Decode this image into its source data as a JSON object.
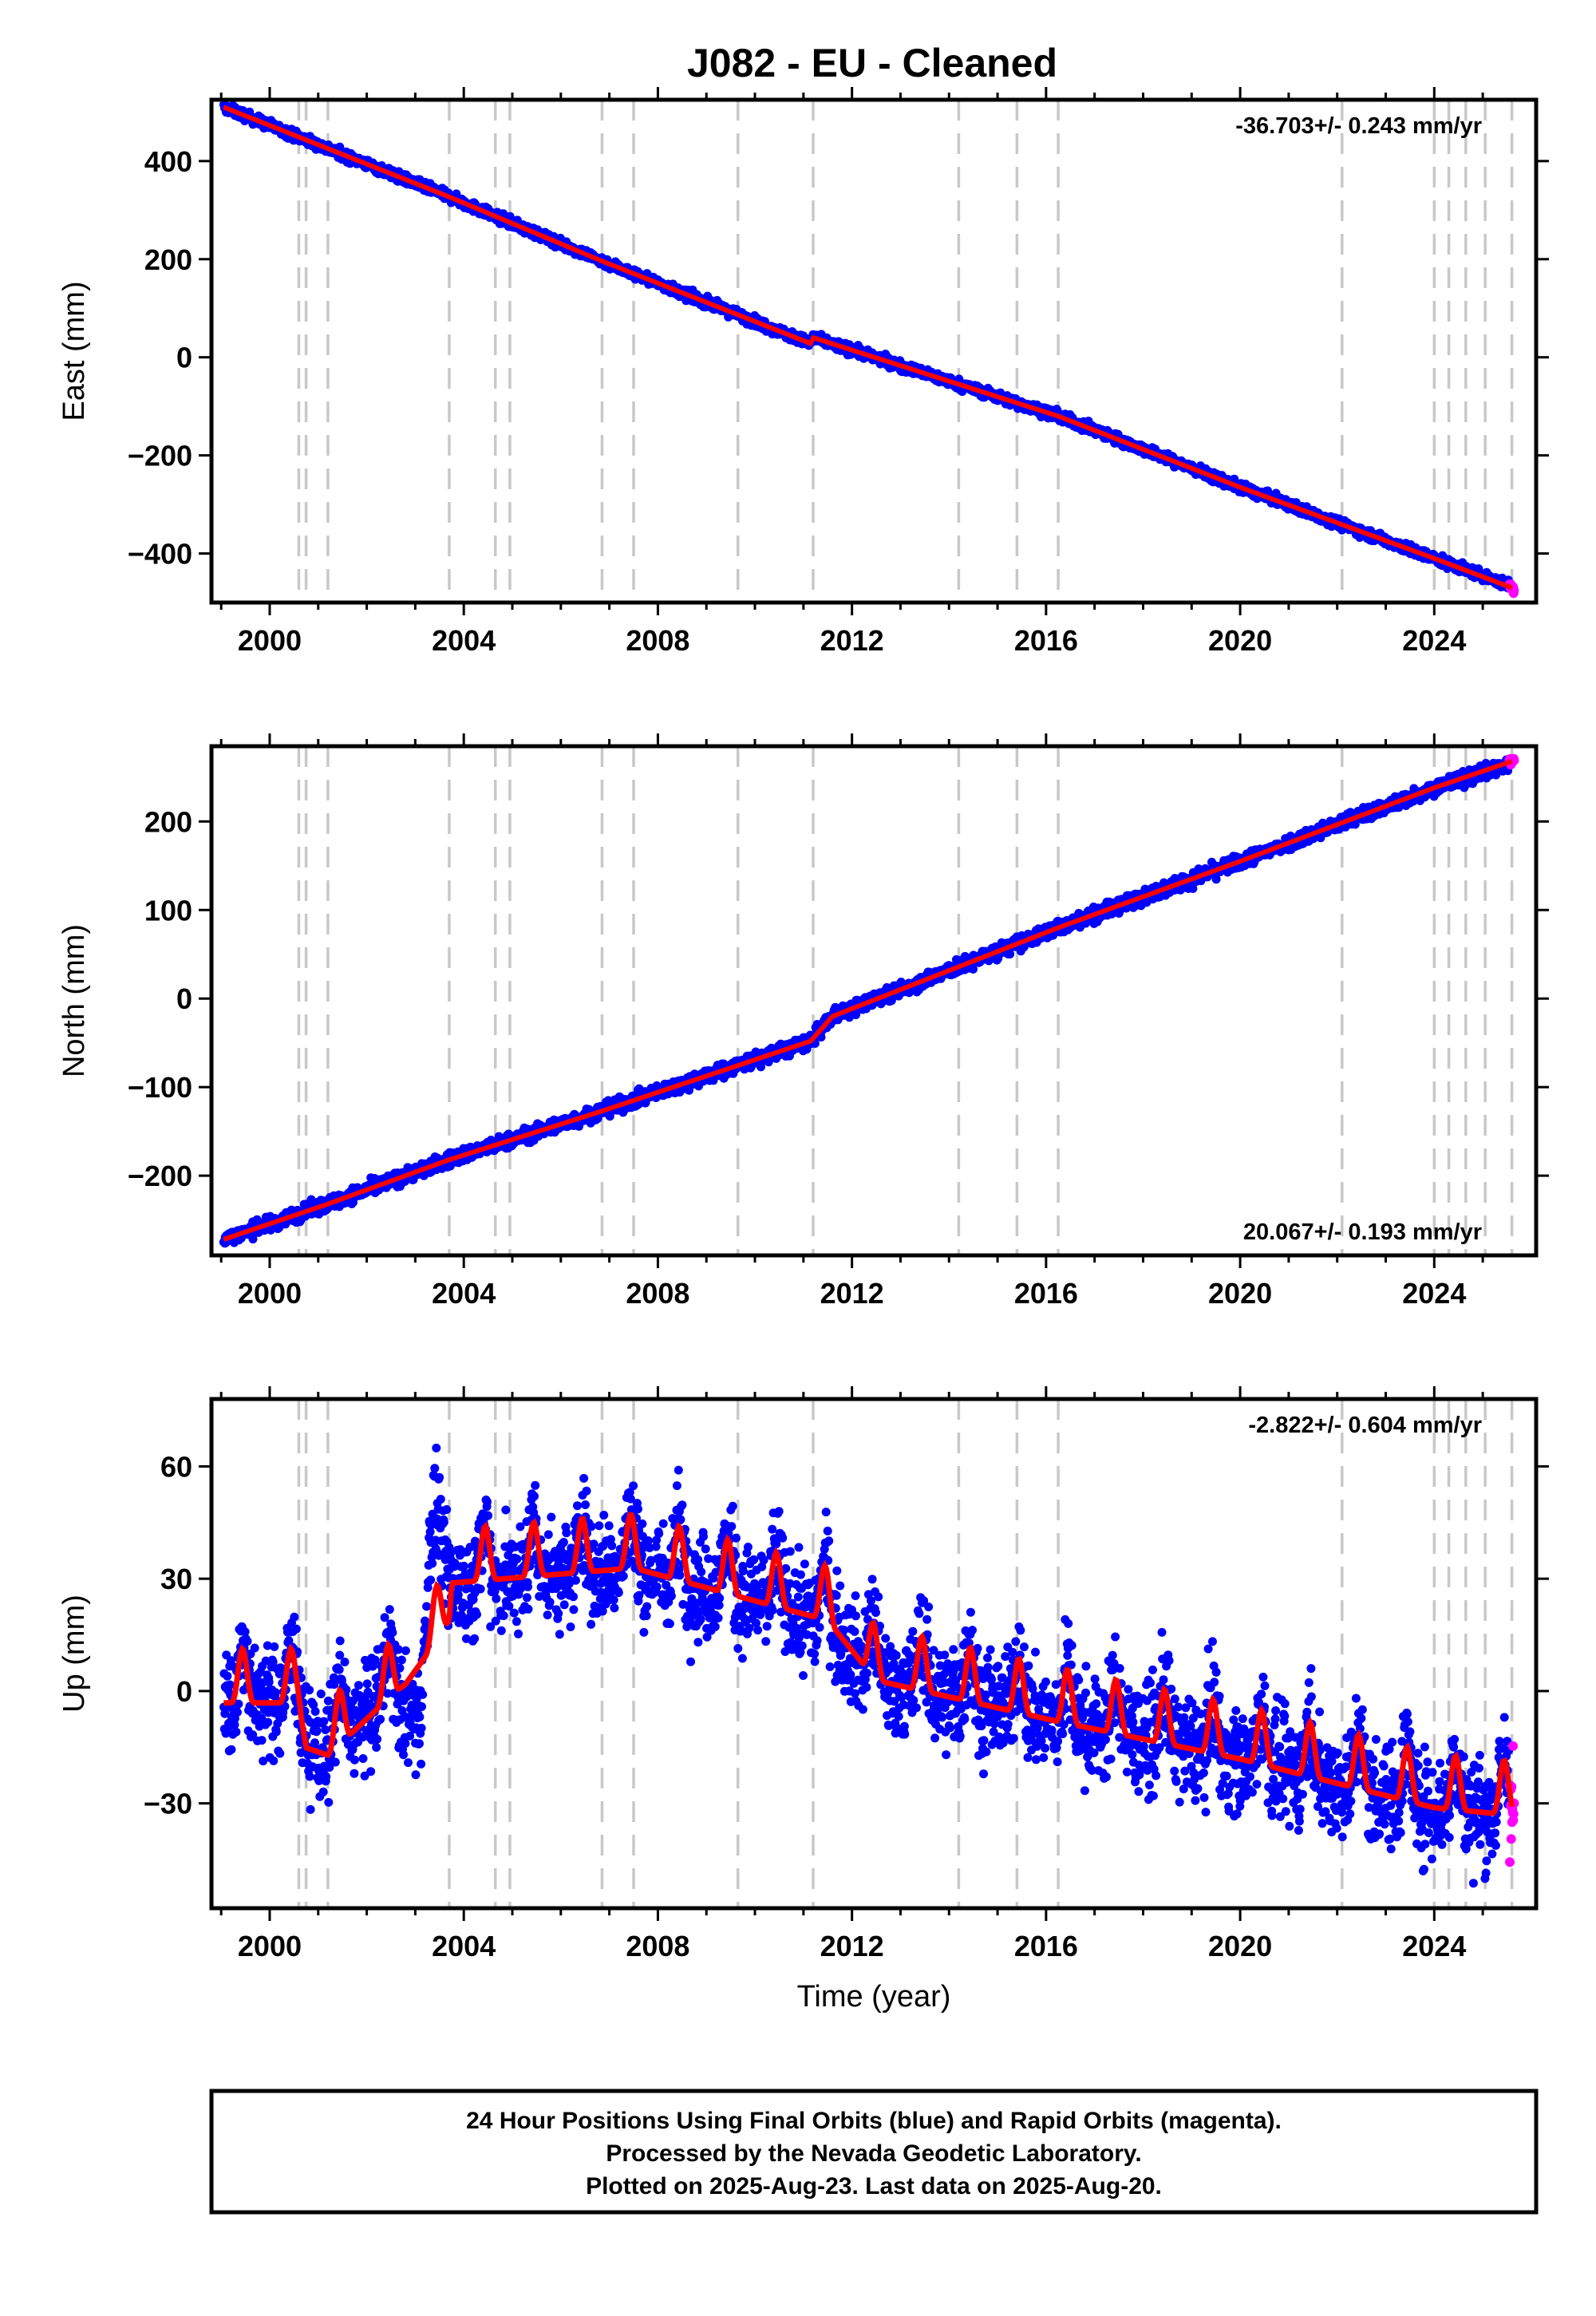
{
  "figure": {
    "title": "J082  - EU - Cleaned",
    "caption": [
      "24 Hour Positions Using Final Orbits (blue) and Rapid Orbits (magenta).",
      "Processed by the Nevada Geodetic Laboratory.",
      "Plotted on 2025-Aug-23. Last data on 2025-Aug-20."
    ],
    "colors": {
      "final_orbits": "#0000ff",
      "rapid_orbits": "#ff00ff",
      "model": "#ff0000",
      "event_lines": "#c8c8c8"
    }
  },
  "chart_data": [
    {
      "type": "scatter",
      "ylabel": "East (mm)",
      "xlabel": "",
      "rate_label": "-36.703+/- 0.243 mm/yr",
      "rate_placement": "top-right",
      "xlim": [
        1998.8,
        2026.1
      ],
      "ylim": [
        -500,
        525
      ],
      "xticks": [
        2000,
        2004,
        2008,
        2012,
        2016,
        2020,
        2024
      ],
      "yticks": [
        -400,
        -200,
        0,
        200,
        400
      ],
      "ytick_labels": [
        "−400",
        "−200",
        "0",
        "200",
        "400"
      ],
      "event_lines": [
        2000.6,
        2000.75,
        2001.2,
        2003.7,
        2004.65,
        2004.95,
        2006.85,
        2007.5,
        2009.65,
        2011.2,
        2014.2,
        2015.4,
        2016.25,
        2022.1,
        2024.0,
        2024.3,
        2024.65,
        2025.05,
        2025.6
      ],
      "series": [
        {
          "role": "final",
          "x_start": 1999.05,
          "x_end": 2025.55,
          "y": [
            [
              1999.05,
              510
            ],
            [
              2003.7,
              327
            ],
            [
              2006.85,
              196
            ],
            [
              2011.15,
              28
            ],
            [
              2011.2,
              40
            ],
            [
              2016.25,
              -120
            ],
            [
              2020.0,
              -265
            ],
            [
              2024.0,
              -410
            ],
            [
              2025.55,
              -465
            ]
          ],
          "scatter_mm": 5
        },
        {
          "role": "rapid",
          "x_start": 2025.55,
          "x_end": 2025.65,
          "y": [
            [
              2025.55,
              -465
            ],
            [
              2025.65,
              -474
            ]
          ],
          "scatter_mm": 4
        },
        {
          "role": "model",
          "y": [
            [
              1999.05,
              510
            ],
            [
              2003.7,
              327
            ],
            [
              2006.85,
              196
            ],
            [
              2011.15,
              28
            ],
            [
              2011.2,
              40
            ],
            [
              2016.25,
              -120
            ],
            [
              2020.0,
              -265
            ],
            [
              2024.0,
              -410
            ],
            [
              2025.6,
              -470
            ]
          ]
        }
      ]
    },
    {
      "type": "scatter",
      "ylabel": "North (mm)",
      "xlabel": "",
      "rate_label": "20.067+/- 0.193 mm/yr",
      "rate_placement": "bottom-right",
      "xlim": [
        1998.8,
        2026.1
      ],
      "ylim": [
        -290,
        285
      ],
      "xticks": [
        2000,
        2004,
        2008,
        2012,
        2016,
        2020,
        2024
      ],
      "yticks": [
        -200,
        -100,
        0,
        100,
        200
      ],
      "ytick_labels": [
        "−200",
        "−100",
        "0",
        "100",
        "200"
      ],
      "event_lines": [
        2000.6,
        2000.75,
        2001.2,
        2003.7,
        2004.65,
        2004.95,
        2006.85,
        2007.5,
        2009.65,
        2011.2,
        2014.2,
        2015.4,
        2016.25,
        2022.1,
        2024.0,
        2024.3,
        2024.65,
        2025.05,
        2025.6
      ],
      "series": [
        {
          "role": "final",
          "x_start": 1999.05,
          "x_end": 2025.55,
          "y": [
            [
              1999.05,
              -272
            ],
            [
              2001.2,
              -232
            ],
            [
              2003.7,
              -182
            ],
            [
              2006.85,
              -127
            ],
            [
              2011.15,
              -48
            ],
            [
              2011.6,
              -20
            ],
            [
              2016.25,
              80
            ],
            [
              2020.0,
              155
            ],
            [
              2024.0,
              238
            ],
            [
              2025.55,
              265
            ]
          ],
          "scatter_mm": 4
        },
        {
          "role": "rapid",
          "x_start": 2025.55,
          "x_end": 2025.65,
          "y": [
            [
              2025.55,
              265
            ],
            [
              2025.65,
              272
            ]
          ],
          "scatter_mm": 3
        },
        {
          "role": "model",
          "y": [
            [
              1999.05,
              -272
            ],
            [
              2001.2,
              -232
            ],
            [
              2003.7,
              -182
            ],
            [
              2006.85,
              -127
            ],
            [
              2011.15,
              -48
            ],
            [
              2011.6,
              -20
            ],
            [
              2016.25,
              80
            ],
            [
              2020.0,
              155
            ],
            [
              2024.0,
              238
            ],
            [
              2025.6,
              268
            ]
          ]
        }
      ]
    },
    {
      "type": "scatter",
      "ylabel": "Up (mm)",
      "xlabel": "Time (year)",
      "rate_label": "-2.822+/- 0.604 mm/yr",
      "rate_placement": "top-right",
      "xlim": [
        1998.8,
        2026.1
      ],
      "ylim": [
        -58,
        78
      ],
      "xticks": [
        2000,
        2004,
        2008,
        2012,
        2016,
        2020,
        2024
      ],
      "yticks": [
        -30,
        0,
        30,
        60
      ],
      "ytick_labels": [
        "−30",
        "0",
        "30",
        "60"
      ],
      "event_lines": [
        2000.6,
        2000.75,
        2001.2,
        2003.7,
        2004.65,
        2004.95,
        2006.85,
        2007.5,
        2009.65,
        2011.2,
        2014.2,
        2015.4,
        2016.25,
        2022.1,
        2024.0,
        2024.3,
        2024.65,
        2025.05,
        2025.6
      ],
      "seasonal_amplitude_mm": 9,
      "series": [
        {
          "role": "final",
          "x_start": 1999.05,
          "x_end": 2025.55,
          "y": [
            [
              1999.05,
              0
            ],
            [
              2000.6,
              0
            ],
            [
              2000.75,
              -10
            ],
            [
              2001.2,
              -12
            ],
            [
              2002.5,
              2
            ],
            [
              2003.1,
              -5
            ],
            [
              2003.3,
              40
            ],
            [
              2003.7,
              32
            ],
            [
              2004.0,
              32
            ],
            [
              2007.5,
              36
            ],
            [
              2011.5,
              22
            ],
            [
              2012.5,
              6
            ],
            [
              2016.25,
              -5
            ],
            [
              2020.0,
              -15
            ],
            [
              2024.0,
              -28
            ],
            [
              2025.55,
              -30
            ]
          ],
          "scatter_mm": 7
        },
        {
          "role": "rapid",
          "x_start": 2025.55,
          "x_end": 2025.65,
          "y": [
            [
              2025.55,
              -28
            ],
            [
              2025.65,
              -32
            ]
          ],
          "scatter_mm": 9
        },
        {
          "role": "model",
          "y": [
            [
              1999.05,
              0
            ],
            [
              2000.6,
              0
            ],
            [
              2000.75,
              -12
            ],
            [
              2001.2,
              -14
            ],
            [
              2002.6,
              3
            ],
            [
              2002.8,
              5
            ],
            [
              2003.3,
              14
            ],
            [
              2003.7,
              22
            ],
            [
              2003.75,
              32
            ],
            [
              2007.5,
              36
            ],
            [
              2011.5,
              22
            ],
            [
              2012.5,
              6
            ],
            [
              2016.25,
              -5
            ],
            [
              2020.0,
              -15
            ],
            [
              2024.0,
              -28
            ],
            [
              2025.6,
              -30
            ]
          ]
        }
      ]
    }
  ]
}
